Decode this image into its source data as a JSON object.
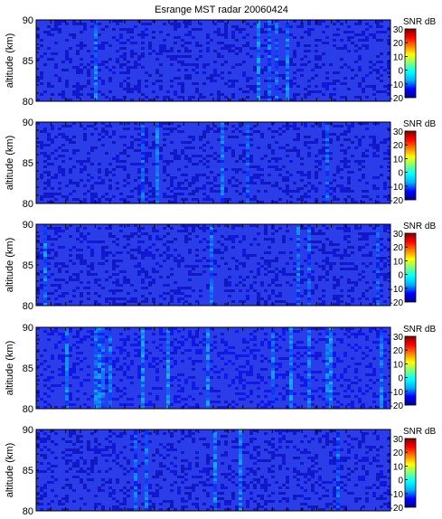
{
  "title": "Esrange MST radar 20060424",
  "colorbar_label": "SNR dB",
  "colorbar_ticks": [
    30,
    20,
    10,
    0,
    -10,
    -20
  ],
  "colorbar_range": [
    -20,
    30
  ],
  "ylabel": "altitude (km)",
  "yticks": [
    90,
    85,
    80
  ],
  "colors": {
    "background": "#2b3de8",
    "colorbar_stops": [
      "#00008f",
      "#0000ff",
      "#00b0ff",
      "#00ffff",
      "#80ff80",
      "#ffff00",
      "#ff8000",
      "#ff0000",
      "#800000"
    ]
  },
  "chart_data": [
    {
      "type": "heatmap",
      "ylabel": "altitude (km)",
      "ylim": [
        80,
        90
      ],
      "value_range": [
        -20,
        30
      ],
      "typical_value": -15,
      "xticks_labeled": false
    },
    {
      "type": "heatmap",
      "ylabel": "altitude (km)",
      "ylim": [
        80,
        90
      ],
      "value_range": [
        -20,
        30
      ],
      "typical_value": -15,
      "xticks_labeled": false
    },
    {
      "type": "heatmap",
      "ylabel": "altitude (km)",
      "ylim": [
        80,
        90
      ],
      "value_range": [
        -20,
        30
      ],
      "typical_value": -15,
      "xticks_labeled": false
    },
    {
      "type": "heatmap",
      "ylabel": "altitude (km)",
      "ylim": [
        80,
        90
      ],
      "value_range": [
        -20,
        30
      ],
      "typical_value": -13,
      "xticks_labeled": false
    },
    {
      "type": "heatmap",
      "ylabel": "altitude (km)",
      "ylim": [
        80,
        90
      ],
      "value_range": [
        -20,
        30
      ],
      "typical_value": -15,
      "xticks_labeled": false
    }
  ]
}
